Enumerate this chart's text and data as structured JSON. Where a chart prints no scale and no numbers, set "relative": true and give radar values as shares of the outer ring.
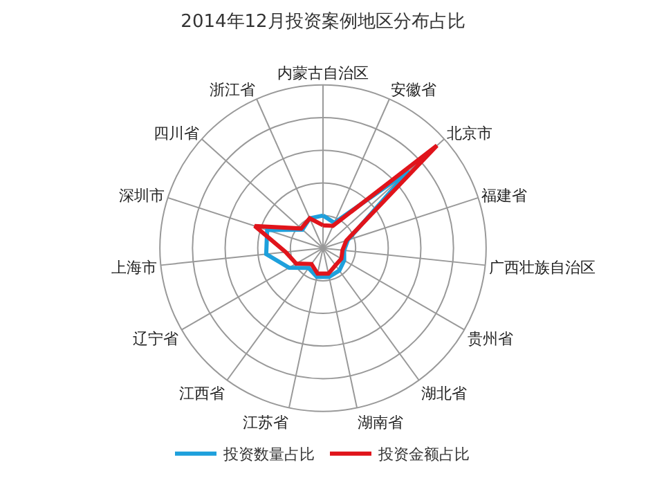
{
  "chart_data": {
    "type": "radar",
    "title": "2014年12月投资案例地区分布占比",
    "relative": true,
    "grid": true,
    "legend": "bottom",
    "marker": "none",
    "line_style": "solid",
    "categories": [
      "内蒙古自治区",
      "安徽省",
      "北京市",
      "福建省",
      "广西壮族自治区",
      "贵州省",
      "湖北省",
      "湖南省",
      "江苏省",
      "江西省",
      "辽宁省",
      "上海市",
      "深圳市",
      "四川省",
      "浙江省"
    ],
    "series": [
      {
        "name": "投资数量占比",
        "color": "#1ea0dc",
        "values": [
          0.2,
          0.17,
          0.71,
          0.16,
          0.13,
          0.15,
          0.17,
          0.18,
          0.18,
          0.15,
          0.24,
          0.35,
          0.36,
          0.17,
          0.2
        ]
      },
      {
        "name": "投资金额占比",
        "color": "#e0141b",
        "values": [
          0.14,
          0.15,
          0.94,
          0.15,
          0.12,
          0.13,
          0.13,
          0.16,
          0.16,
          0.12,
          0.19,
          0.23,
          0.44,
          0.18,
          0.2
        ]
      }
    ]
  }
}
